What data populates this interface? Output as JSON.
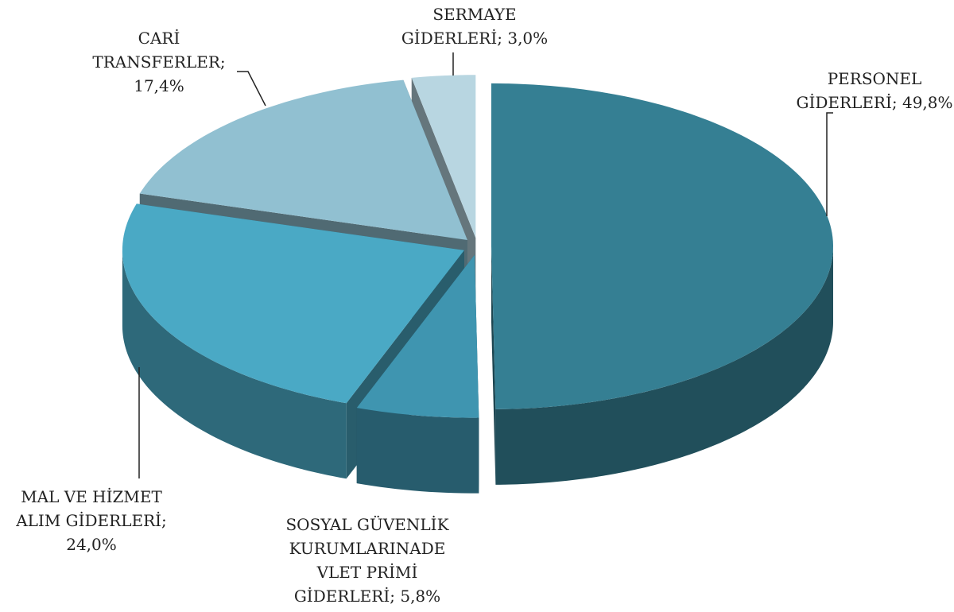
{
  "chart_data": {
    "type": "pie",
    "categories": [
      "PERSONEL GİDERLERİ;",
      "SOSYAL GÜVENLİK KURUMLARINADE VLET PRİMİ GİDERLERİ;",
      "MAL VE HİZMET ALIM GİDERLERİ;",
      "CARİ TRANSFERLER;",
      "SERMAYE GİDERLERİ;"
    ],
    "values": [
      49.8,
      5.8,
      24.0,
      17.4,
      3.0
    ],
    "value_labels": [
      "49,8%",
      "5,8%",
      "24,0%",
      "17,4%",
      "3,0%"
    ],
    "colors": [
      "#357f93",
      "#3f95b0",
      "#4aa9c5",
      "#91c0d1",
      "#b8d6e1"
    ]
  }
}
